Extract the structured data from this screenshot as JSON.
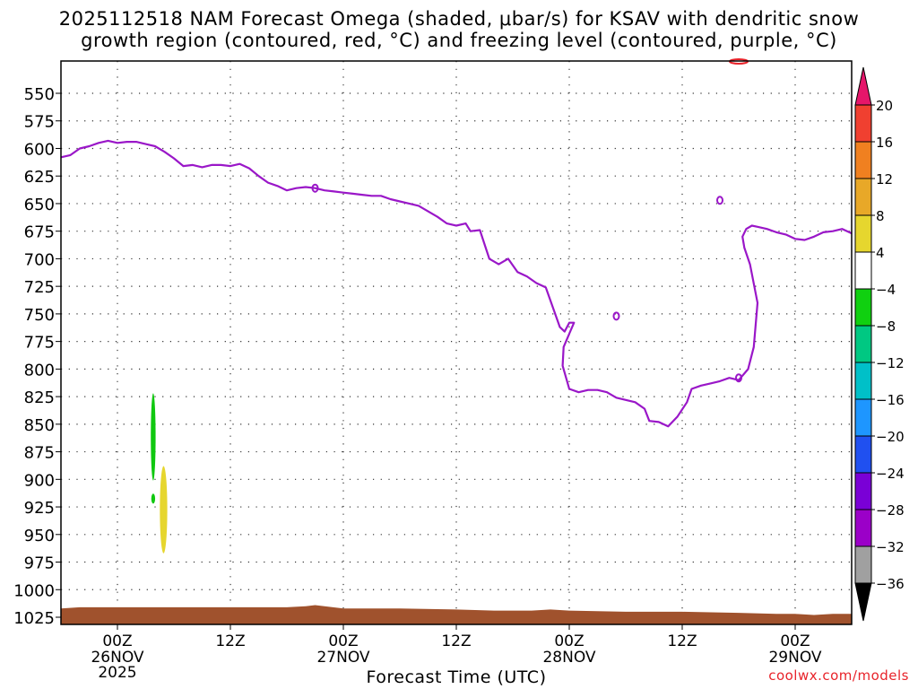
{
  "title": {
    "line1": "2025112518 NAM Forecast Omega (shaded, μbar/s) for KSAV with dendritic snow",
    "line2": "growth region (contoured, red, °C) and freezing level (contoured, purple, °C)"
  },
  "credit": "coolwx.com/models",
  "chart_data": {
    "type": "time-height cross-section",
    "title": "2025112518 NAM Forecast Omega (shaded, μbar/s) for KSAV with dendritic snow growth region (contoured, red, °C) and freezing level (contoured, purple, °C)",
    "xlabel": "Forecast Time (UTC)",
    "ylabel": "",
    "y_axis": {
      "unit": "hPa",
      "reversed": true,
      "range": [
        535,
        1040
      ],
      "ticks": [
        "550",
        "575",
        "600",
        "625",
        "650",
        "675",
        "700",
        "725",
        "750",
        "775",
        "800",
        "825",
        "850",
        "875",
        "900",
        "925",
        "950",
        "975",
        "1000",
        "1025"
      ]
    },
    "x_axis": {
      "unit": "hours",
      "range": [
        -6,
        78
      ],
      "ticks": [
        {
          "h": 0,
          "label": "00Z",
          "date": "26NOV",
          "year": "2025"
        },
        {
          "h": 12,
          "label": "12Z",
          "date": "",
          "year": ""
        },
        {
          "h": 24,
          "label": "00Z",
          "date": "27NOV",
          "year": ""
        },
        {
          "h": 36,
          "label": "12Z",
          "date": "",
          "year": ""
        },
        {
          "h": 48,
          "label": "00Z",
          "date": "28NOV",
          "year": ""
        },
        {
          "h": 60,
          "label": "12Z",
          "date": "",
          "year": ""
        },
        {
          "h": 72,
          "label": "00Z",
          "date": "29NOV",
          "year": ""
        }
      ]
    },
    "grid": true,
    "colorbar": {
      "position": "right",
      "labels": [
        "20",
        "16",
        "12",
        "8",
        "4",
        "−4",
        "−8",
        "−12",
        "−16",
        "−20",
        "−24",
        "−28",
        "−32",
        "−36"
      ],
      "colors": [
        "#e8e8e8",
        "#a0a0a0",
        "#9b00c8",
        "#7a00d6",
        "#4a20e0",
        "#2058ff",
        "#1e96ff",
        "#00c0c8",
        "#00c882",
        "#10d010",
        "#ffffff",
        "#e6d62e",
        "#e8b020",
        "#f08a18",
        "#f05028"
      ],
      "top_arrow_color": "#e6166a",
      "bottom_arrow_color": "#000000"
    },
    "freezing_level": {
      "color": "#9a17c8",
      "line_width": 2.2,
      "main": [
        [
          -6,
          608
        ],
        [
          -5,
          606
        ],
        [
          -4,
          600
        ],
        [
          -3,
          598
        ],
        [
          -2,
          595
        ],
        [
          -1,
          593
        ],
        [
          0,
          595
        ],
        [
          1,
          594
        ],
        [
          2,
          594
        ],
        [
          3,
          596
        ],
        [
          4,
          598
        ],
        [
          5,
          603
        ],
        [
          6,
          609
        ],
        [
          7,
          616
        ],
        [
          8,
          615
        ],
        [
          9,
          617
        ],
        [
          10,
          615
        ],
        [
          11,
          615
        ],
        [
          12,
          616
        ],
        [
          13,
          614
        ],
        [
          14,
          618
        ],
        [
          15,
          625
        ],
        [
          16,
          631
        ],
        [
          17,
          634
        ],
        [
          18,
          638
        ],
        [
          19,
          636
        ],
        [
          20,
          635
        ],
        [
          21,
          636
        ],
        [
          22,
          638
        ],
        [
          23,
          639
        ],
        [
          24,
          640
        ],
        [
          25,
          641
        ],
        [
          26,
          642
        ],
        [
          27,
          643
        ],
        [
          28,
          643
        ],
        [
          29,
          646
        ],
        [
          30,
          648
        ],
        [
          31,
          650
        ],
        [
          32,
          652
        ],
        [
          33,
          657
        ],
        [
          34,
          662
        ],
        [
          35,
          668
        ],
        [
          36,
          670
        ],
        [
          37,
          668
        ],
        [
          37.5,
          675
        ],
        [
          38.5,
          674
        ],
        [
          39.5,
          700
        ],
        [
          40.5,
          705
        ],
        [
          41.5,
          700
        ],
        [
          42.5,
          712
        ],
        [
          43.5,
          716
        ],
        [
          44.5,
          722
        ],
        [
          45.5,
          726
        ],
        [
          46.3,
          745
        ],
        [
          47,
          762
        ],
        [
          47.5,
          766
        ],
        [
          48,
          758
        ],
        [
          48.5,
          758
        ],
        [
          48,
          768
        ],
        [
          47.4,
          780
        ],
        [
          47.3,
          797
        ],
        [
          48,
          818
        ],
        [
          49,
          821
        ],
        [
          50,
          819
        ],
        [
          51,
          819
        ],
        [
          52,
          821
        ],
        [
          53,
          826
        ],
        [
          54,
          828
        ],
        [
          55,
          830
        ],
        [
          56,
          836
        ],
        [
          56.5,
          847
        ],
        [
          57.5,
          848
        ],
        [
          58.5,
          852
        ],
        [
          59.5,
          843
        ],
        [
          60.5,
          830
        ],
        [
          61,
          818
        ],
        [
          62,
          815
        ],
        [
          63,
          813
        ],
        [
          64,
          811
        ],
        [
          65,
          808
        ],
        [
          66,
          810
        ],
        [
          67,
          800
        ],
        [
          67.6,
          780
        ],
        [
          68,
          740
        ],
        [
          67.2,
          705
        ],
        [
          66.6,
          690
        ],
        [
          66.4,
          680
        ],
        [
          66.8,
          673
        ],
        [
          67.4,
          670
        ],
        [
          68,
          671
        ],
        [
          69,
          673
        ],
        [
          70,
          676
        ],
        [
          71,
          678
        ],
        [
          72,
          682
        ],
        [
          73,
          683
        ],
        [
          74,
          680
        ],
        [
          75,
          676
        ],
        [
          76,
          675
        ],
        [
          77,
          673
        ],
        [
          78,
          677
        ]
      ],
      "small": [
        [
          21,
          636
        ],
        [
          64,
          647
        ],
        [
          53,
          752
        ],
        [
          66,
          808
        ]
      ]
    },
    "omega_blobs": [
      {
        "color": "#10c810",
        "h_center": 3.8,
        "p_top": 822,
        "p_bottom": 901,
        "width_h": 0.32
      },
      {
        "color": "#10c810",
        "h_center": 3.8,
        "p_top": 913,
        "p_bottom": 922,
        "width_h": 0.22
      },
      {
        "color": "#e6d62e",
        "h_center": 4.9,
        "p_top": 888,
        "p_bottom": 967,
        "width_h": 0.6
      }
    ],
    "dgz_blob": {
      "color": "#e8232a",
      "h_center": 66,
      "p": 537
    },
    "terrain": {
      "color": "#a0522d",
      "top": [
        [
          -6,
          1017
        ],
        [
          -4,
          1016
        ],
        [
          0,
          1016
        ],
        [
          6,
          1016
        ],
        [
          12,
          1016
        ],
        [
          18,
          1016
        ],
        [
          20,
          1015
        ],
        [
          21,
          1014
        ],
        [
          22,
          1015
        ],
        [
          24,
          1017
        ],
        [
          30,
          1017
        ],
        [
          36,
          1018
        ],
        [
          40,
          1019
        ],
        [
          44,
          1019
        ],
        [
          46,
          1018
        ],
        [
          48,
          1019
        ],
        [
          54,
          1020
        ],
        [
          60,
          1020
        ],
        [
          66,
          1021
        ],
        [
          70,
          1022
        ],
        [
          72,
          1022
        ],
        [
          74,
          1023
        ],
        [
          76,
          1022
        ],
        [
          78,
          1022
        ]
      ]
    }
  }
}
